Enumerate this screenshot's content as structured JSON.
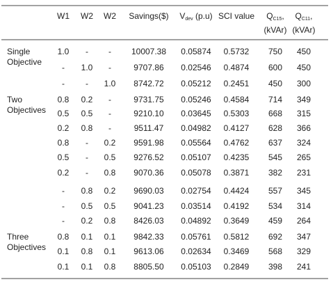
{
  "table": {
    "columns": [
      "W1",
      "W2",
      "W2",
      "Savings($)",
      {
        "main": "V",
        "sub": "dev",
        "rest": " (p.u)"
      },
      "SCI value",
      {
        "main": "Q",
        "sub": "C15",
        "rest": ",",
        "line2": "(kVAr)"
      },
      {
        "main": "Q",
        "sub": "C11",
        "rest": ",",
        "line2": "(kVAr)"
      }
    ],
    "groups": [
      {
        "label": [
          "Single",
          "Objective"
        ],
        "rows": [
          [
            "1.0",
            "-",
            "-",
            "10007.38",
            "0.05874",
            "0.5732",
            "750",
            "450"
          ],
          [
            "-",
            "1.0",
            "-",
            "9707.86",
            "0.02546",
            "0.4874",
            "600",
            "450"
          ],
          [
            "-",
            "-",
            "1.0",
            "8742.72",
            "0.05212",
            "0.2451",
            "450",
            "300"
          ]
        ]
      },
      {
        "label": [
          "Two",
          "Objectives"
        ],
        "rows": [
          [
            "0.8",
            "0.2",
            "-",
            "9731.75",
            "0.05246",
            "0.4584",
            "714",
            "349"
          ],
          [
            "0.5",
            "0.5",
            "-",
            "9210.10",
            "0.03645",
            "0.5303",
            "668",
            "315"
          ],
          [
            "0.2",
            "0.8",
            "-",
            "9511.47",
            "0.04982",
            "0.4127",
            "628",
            "366"
          ],
          [
            "0.8",
            "-",
            "0.2",
            "9591.98",
            "0.05564",
            "0.4762",
            "637",
            "324"
          ],
          [
            "0.5",
            "-",
            "0.5",
            "9276.52",
            "0.05107",
            "0.4235",
            "545",
            "265"
          ],
          [
            "0.2",
            "-",
            "0.8",
            "9070.36",
            "0.05078",
            "0.3871",
            "382",
            "231"
          ],
          [
            "-",
            "0.8",
            "0.2",
            "9690.03",
            "0.02754",
            "0.4424",
            "557",
            "345"
          ],
          [
            "-",
            "0.5",
            "0.5",
            "9041.23",
            "0.03514",
            "0.4192",
            "534",
            "314"
          ],
          [
            "-",
            "0.2",
            "0.8",
            "8426.03",
            "0.04892",
            "0.3649",
            "459",
            "264"
          ]
        ]
      },
      {
        "label": [
          "Three",
          "Objectives"
        ],
        "rows": [
          [
            "0.8",
            "0.1",
            "0.1",
            "9842.33",
            "0.05761",
            "0.5812",
            "692",
            "347"
          ],
          [
            "0.1",
            "0.8",
            "0.1",
            "9613.06",
            "0.02634",
            "0.3469",
            "568",
            "329"
          ],
          [
            "0.1",
            "0.1",
            "0.8",
            "8805.50",
            "0.05103",
            "0.2849",
            "398",
            "241"
          ]
        ]
      }
    ]
  }
}
